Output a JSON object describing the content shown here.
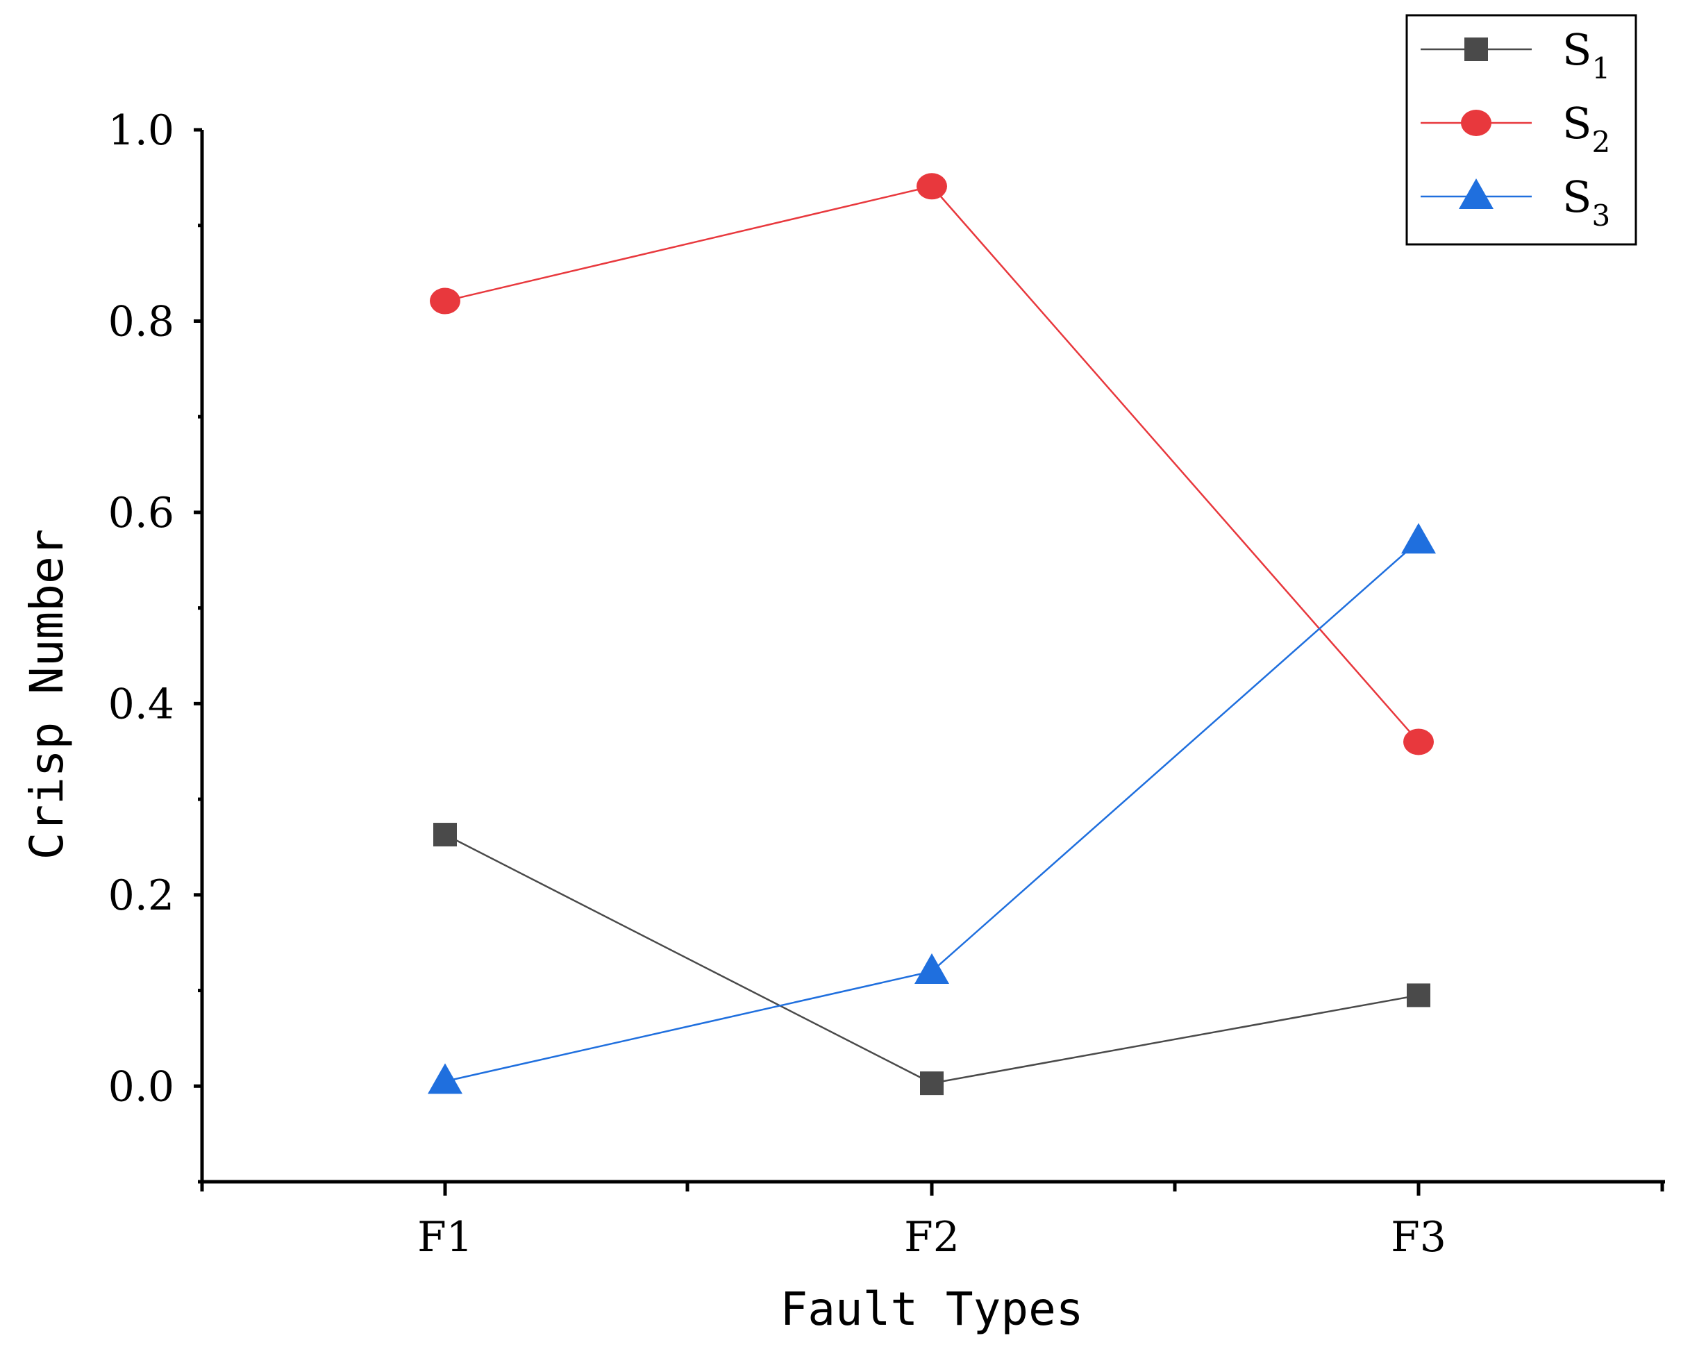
{
  "chart_data": {
    "type": "line",
    "title": "",
    "xlabel": "Fault Types",
    "ylabel": "Crisp Number",
    "categories": [
      "F1",
      "F2",
      "F3"
    ],
    "ylim": [
      -0.1,
      1.0
    ],
    "yticks": [
      0.0,
      0.2,
      0.4,
      0.6,
      0.8,
      1.0
    ],
    "ytick_labels": [
      "0.0",
      "0.2",
      "0.4",
      "0.6",
      "0.8",
      "1.0"
    ],
    "grid": false,
    "legend_position": "top-right",
    "series": [
      {
        "name": "S",
        "subscript": "1",
        "marker": "square",
        "color": "#4a4a4a",
        "values": [
          0.263,
          0.003,
          0.095
        ]
      },
      {
        "name": "S",
        "subscript": "2",
        "marker": "circle",
        "color": "#e8383d",
        "values": [
          0.821,
          0.941,
          0.36
        ]
      },
      {
        "name": "S",
        "subscript": "3",
        "marker": "triangle",
        "color": "#1f6fde",
        "values": [
          0.005,
          0.12,
          0.57
        ]
      }
    ]
  }
}
